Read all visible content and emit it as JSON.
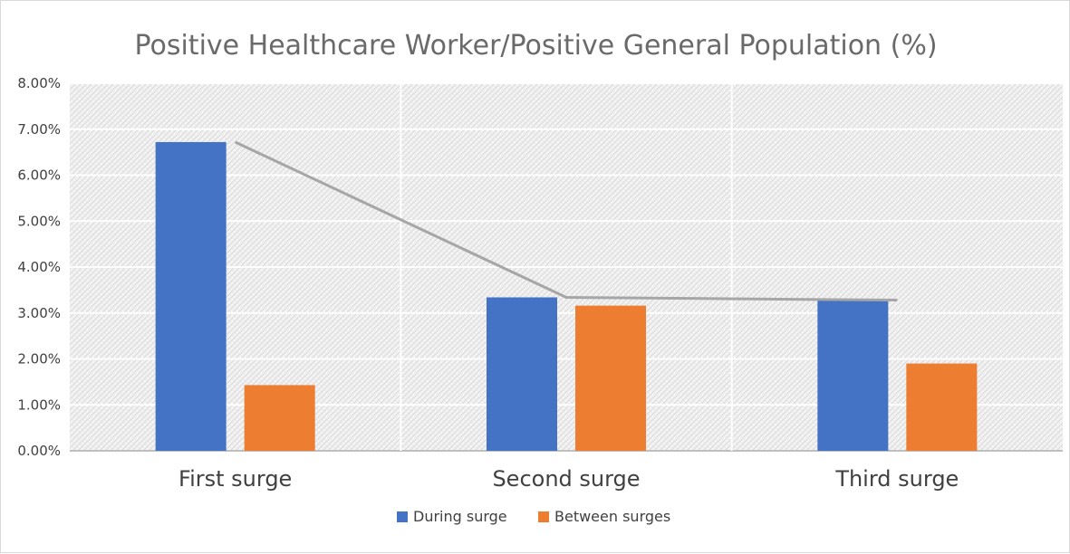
{
  "chart_data": {
    "type": "bar",
    "title": "Positive Healthcare Worker/Positive General Population (%)",
    "categories": [
      "First surge",
      "Second surge",
      "Third surge"
    ],
    "series": [
      {
        "name": "During surge",
        "values": [
          6.72,
          3.34,
          3.28
        ],
        "color": "#4472c4"
      },
      {
        "name": "Between  surges",
        "values": [
          1.43,
          3.16,
          1.9
        ],
        "color": "#ed7d31"
      }
    ],
    "trend_line": {
      "series": "During surge",
      "color": "#a6a6a6"
    },
    "ylim": [
      0,
      8
    ],
    "yticks": [
      "0.00%",
      "1.00%",
      "2.00%",
      "3.00%",
      "4.00%",
      "5.00%",
      "6.00%",
      "7.00%",
      "8.00%"
    ],
    "ytick_values": [
      0,
      1,
      2,
      3,
      4,
      5,
      6,
      7,
      8
    ],
    "grid": true,
    "legend_position": "bottom"
  }
}
